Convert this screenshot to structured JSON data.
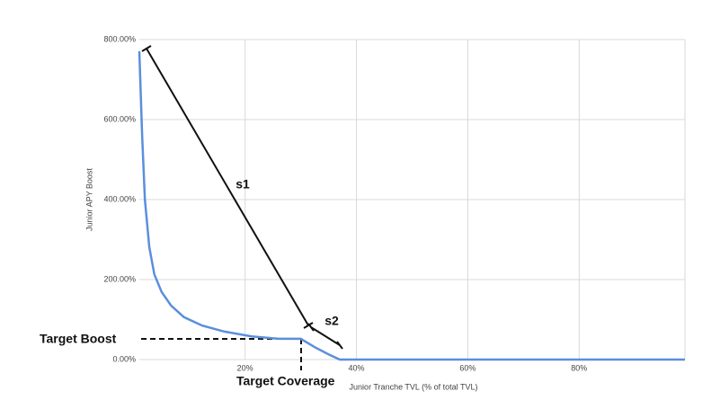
{
  "chart_data": {
    "type": "line",
    "y_label": "Junior APY Boost",
    "x_label": "Junior Tranche TVL (% of total TVL)",
    "annotations": [
      "s1",
      "s2",
      "Target Boost",
      "Target Coverage"
    ],
    "x": [
      1,
      1.5,
      2,
      2.8,
      3.7,
      5,
      6.7,
      9,
      12.3,
      16.3,
      21.2,
      26,
      30,
      32.5,
      35,
      37,
      99
    ],
    "series": [
      {
        "name": "Junior APY Boost",
        "color": "#5a8fdc",
        "values": [
          771,
          562,
          400,
          281,
          213,
          169,
          135,
          106,
          85,
          70,
          58,
          52,
          52,
          31,
          13,
          0,
          0
        ]
      }
    ],
    "xlim": [
      1,
      99
    ],
    "xticks": [
      {
        "value": 20,
        "label": "20%"
      },
      {
        "value": 40,
        "label": "40%"
      },
      {
        "value": 60,
        "label": "60%"
      },
      {
        "value": 80,
        "label": "80%"
      }
    ],
    "ylim": [
      0,
      800
    ],
    "yticks": [
      {
        "value": 0,
        "label": "0.00%"
      },
      {
        "value": 200,
        "label": "200.00%"
      },
      {
        "value": 400,
        "label": "400.00%"
      },
      {
        "value": 600,
        "label": "600.00%"
      },
      {
        "value": 800,
        "label": "800.00%"
      }
    ],
    "grid": true
  }
}
